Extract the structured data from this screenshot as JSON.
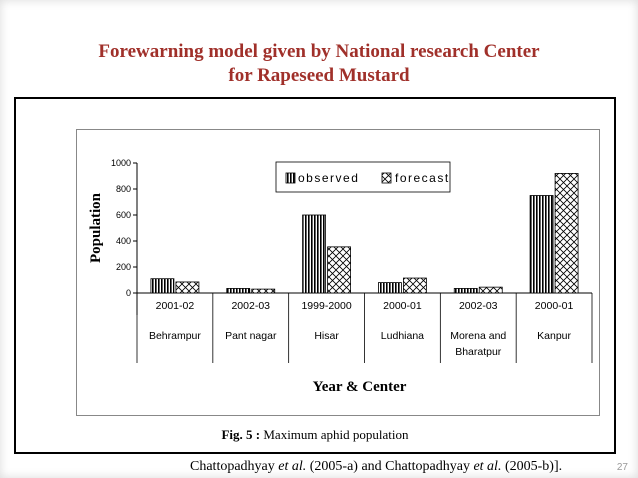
{
  "slide": {
    "title_line1": "Forewarning model given by National research Center",
    "title_line2": "for Rapeseed Mustard",
    "page_number": "27"
  },
  "figure": {
    "caption_prefix": "Fig. 5 :",
    "caption_text": " Maximum aphid population"
  },
  "citation": {
    "part1": "Chattopadhyay ",
    "etal1": "et al.",
    "part2": " (2005-a) and Chattopadhyay ",
    "etal2": "et al.",
    "part3": " (2005-b)]."
  },
  "colors": {
    "title": "#a0302a",
    "bar": "#000000"
  },
  "chart_data": {
    "type": "bar",
    "categories": [
      "2001-02",
      "2002-03",
      "1999-2000",
      "2000-01",
      "2002-03",
      "2000-01"
    ],
    "centers": [
      "Behrampur",
      "Pant nagar",
      "Hisar",
      "Ludhiana",
      "Morena and Bharatpur",
      "Kanpur"
    ],
    "series": [
      {
        "name": "observed",
        "values": [
          110,
          35,
          600,
          80,
          35,
          750
        ]
      },
      {
        "name": "forecast",
        "values": [
          85,
          30,
          355,
          115,
          45,
          920
        ]
      }
    ],
    "xlabel": "Year & Center",
    "ylabel": "Population",
    "ylim": [
      0,
      1000
    ],
    "yticks": [
      0,
      200,
      400,
      600,
      800,
      1000
    ],
    "legend_position": "top-right",
    "grid": false
  }
}
